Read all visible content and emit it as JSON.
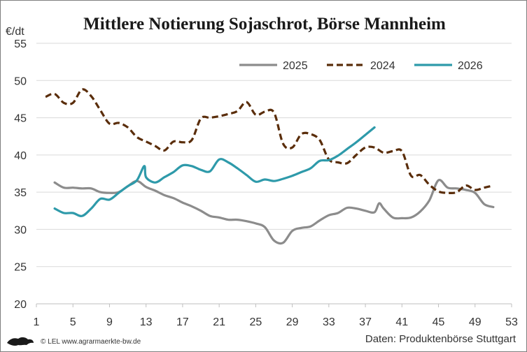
{
  "chart_data": {
    "type": "line",
    "title": "Mittlere Notierung Sojaschrot, Börse Mannheim",
    "ylabel": "€/dt",
    "xlabel": "",
    "ylim": [
      20,
      55
    ],
    "xlim": [
      1,
      53
    ],
    "yticks": [
      20,
      25,
      30,
      35,
      40,
      45,
      50,
      55
    ],
    "xticks": [
      1,
      5,
      9,
      13,
      17,
      21,
      25,
      29,
      33,
      37,
      41,
      45,
      49,
      53
    ],
    "grid": "horizontal",
    "legend_position": "top-right",
    "series": [
      {
        "name": "2025",
        "color": "#8c8c8c",
        "style": "solid",
        "points": [
          [
            3,
            36.3
          ],
          [
            4,
            35.6
          ],
          [
            5,
            35.6
          ],
          [
            6,
            35.5
          ],
          [
            7,
            35.5
          ],
          [
            8,
            35.0
          ],
          [
            9,
            34.9
          ],
          [
            10,
            35.0
          ],
          [
            11,
            35.8
          ],
          [
            12,
            36.5
          ],
          [
            13,
            35.7
          ],
          [
            14,
            35.2
          ],
          [
            15,
            34.6
          ],
          [
            16,
            34.2
          ],
          [
            17,
            33.6
          ],
          [
            18,
            33.1
          ],
          [
            19,
            32.5
          ],
          [
            20,
            31.8
          ],
          [
            21,
            31.6
          ],
          [
            22,
            31.3
          ],
          [
            23,
            31.3
          ],
          [
            24,
            31.1
          ],
          [
            25,
            30.8
          ],
          [
            26,
            30.3
          ],
          [
            27,
            28.5
          ],
          [
            28,
            28.2
          ],
          [
            29,
            29.8
          ],
          [
            30,
            30.2
          ],
          [
            31,
            30.4
          ],
          [
            32,
            31.2
          ],
          [
            33,
            31.9
          ],
          [
            34,
            32.2
          ],
          [
            35,
            32.9
          ],
          [
            36,
            32.8
          ],
          [
            37,
            32.5
          ],
          [
            38,
            32.3
          ],
          [
            38.5,
            33.5
          ],
          [
            39,
            32.8
          ],
          [
            40,
            31.6
          ],
          [
            41,
            31.5
          ],
          [
            42,
            31.6
          ],
          [
            43,
            32.4
          ],
          [
            44,
            33.9
          ],
          [
            45,
            36.6
          ],
          [
            46,
            35.6
          ],
          [
            47,
            35.5
          ],
          [
            48,
            35.3
          ],
          [
            49,
            34.9
          ],
          [
            50,
            33.4
          ],
          [
            51,
            33.0
          ]
        ]
      },
      {
        "name": "2024",
        "color": "#5a2d0a",
        "style": "dashed",
        "points": [
          [
            2,
            47.8
          ],
          [
            3,
            48.2
          ],
          [
            4,
            47.0
          ],
          [
            5,
            47.0
          ],
          [
            6,
            48.8
          ],
          [
            7,
            47.9
          ],
          [
            8,
            46.0
          ],
          [
            9,
            44.2
          ],
          [
            10,
            44.3
          ],
          [
            11,
            43.7
          ],
          [
            12,
            42.4
          ],
          [
            13,
            41.8
          ],
          [
            14,
            41.2
          ],
          [
            15,
            40.6
          ],
          [
            16,
            41.8
          ],
          [
            17,
            41.7
          ],
          [
            18,
            42.0
          ],
          [
            19,
            44.9
          ],
          [
            20,
            45.0
          ],
          [
            21,
            45.2
          ],
          [
            22,
            45.5
          ],
          [
            23,
            45.9
          ],
          [
            24,
            47.1
          ],
          [
            25,
            45.4
          ],
          [
            26,
            45.8
          ],
          [
            27,
            45.7
          ],
          [
            28,
            41.5
          ],
          [
            29,
            41.0
          ],
          [
            30,
            42.8
          ],
          [
            31,
            42.8
          ],
          [
            32,
            42.0
          ],
          [
            33,
            39.4
          ],
          [
            34,
            39.0
          ],
          [
            35,
            38.9
          ],
          [
            36,
            40.0
          ],
          [
            37,
            41.0
          ],
          [
            38,
            41.0
          ],
          [
            39,
            40.3
          ],
          [
            40,
            40.5
          ],
          [
            41,
            40.5
          ],
          [
            42,
            37.2
          ],
          [
            43,
            37.3
          ],
          [
            44,
            36.0
          ],
          [
            45,
            35.1
          ],
          [
            46,
            34.9
          ],
          [
            47,
            35.0
          ],
          [
            48,
            35.9
          ],
          [
            49,
            35.3
          ],
          [
            50,
            35.6
          ],
          [
            51,
            35.9
          ]
        ]
      },
      {
        "name": "2026",
        "color": "#2e9aaa",
        "style": "solid",
        "points": [
          [
            3,
            32.8
          ],
          [
            4,
            32.2
          ],
          [
            5,
            32.2
          ],
          [
            6,
            31.8
          ],
          [
            7,
            32.8
          ],
          [
            8,
            34.1
          ],
          [
            9,
            34.0
          ],
          [
            10,
            34.9
          ],
          [
            11,
            35.8
          ],
          [
            12,
            36.6
          ],
          [
            12.8,
            38.5
          ],
          [
            13,
            37.0
          ],
          [
            14,
            36.3
          ],
          [
            15,
            37.0
          ],
          [
            16,
            37.7
          ],
          [
            17,
            38.6
          ],
          [
            18,
            38.5
          ],
          [
            19,
            38.0
          ],
          [
            20,
            37.8
          ],
          [
            21,
            39.4
          ],
          [
            22,
            39.0
          ],
          [
            23,
            38.2
          ],
          [
            24,
            37.3
          ],
          [
            25,
            36.4
          ],
          [
            26,
            36.7
          ],
          [
            27,
            36.5
          ],
          [
            28,
            36.8
          ],
          [
            29,
            37.2
          ],
          [
            30,
            37.7
          ],
          [
            31,
            38.2
          ],
          [
            32,
            39.2
          ],
          [
            33,
            39.3
          ],
          [
            34,
            39.9
          ],
          [
            35,
            40.8
          ],
          [
            36,
            41.7
          ],
          [
            37,
            42.7
          ],
          [
            38,
            43.7
          ]
        ]
      }
    ]
  },
  "footer": {
    "logo_text": "© LEL www.agrarmaerkte-bw.de",
    "source": "Daten: Produktenbörse Stuttgart"
  }
}
